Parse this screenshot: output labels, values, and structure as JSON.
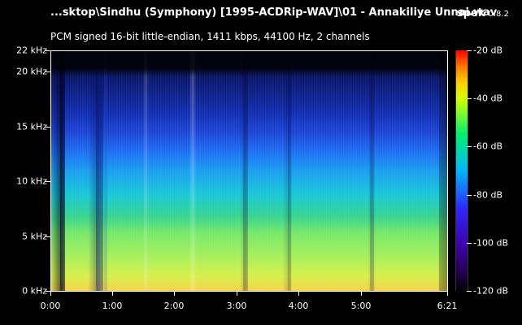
{
  "header": {
    "file_title": "...sktop\\Sindhu (Symphony) [1995-ACDRip-WAV]\\01 - Annakiliye Unnai.wav",
    "app_name": "spek",
    "app_version": "0.8.2",
    "audio_info": "PCM signed 16-bit little-endian, 1411 kbps, 44100 Hz, 2 channels"
  },
  "y_axis": {
    "labels": [
      "22 kHz",
      "20 kHz",
      "15 kHz",
      "10 kHz",
      "5 kHz",
      "0 kHz"
    ]
  },
  "x_axis": {
    "labels": [
      "0:00",
      "1:00",
      "2:00",
      "3:00",
      "4:00",
      "5:00",
      "6:21"
    ]
  },
  "colorbar": {
    "labels": [
      "-20 dB",
      "-40 dB",
      "-60 dB",
      "-80 dB",
      "-100 dB",
      "-120 dB"
    ],
    "colors": {
      "top": "#ff0000",
      "upper": "#ffcb00",
      "middle": "#00f06b",
      "lower": "#00b8ff",
      "dark": "#3e00a3",
      "bottom": "#000000"
    }
  },
  "visual": {
    "background": "#000000",
    "text_color": "#ffffff"
  }
}
